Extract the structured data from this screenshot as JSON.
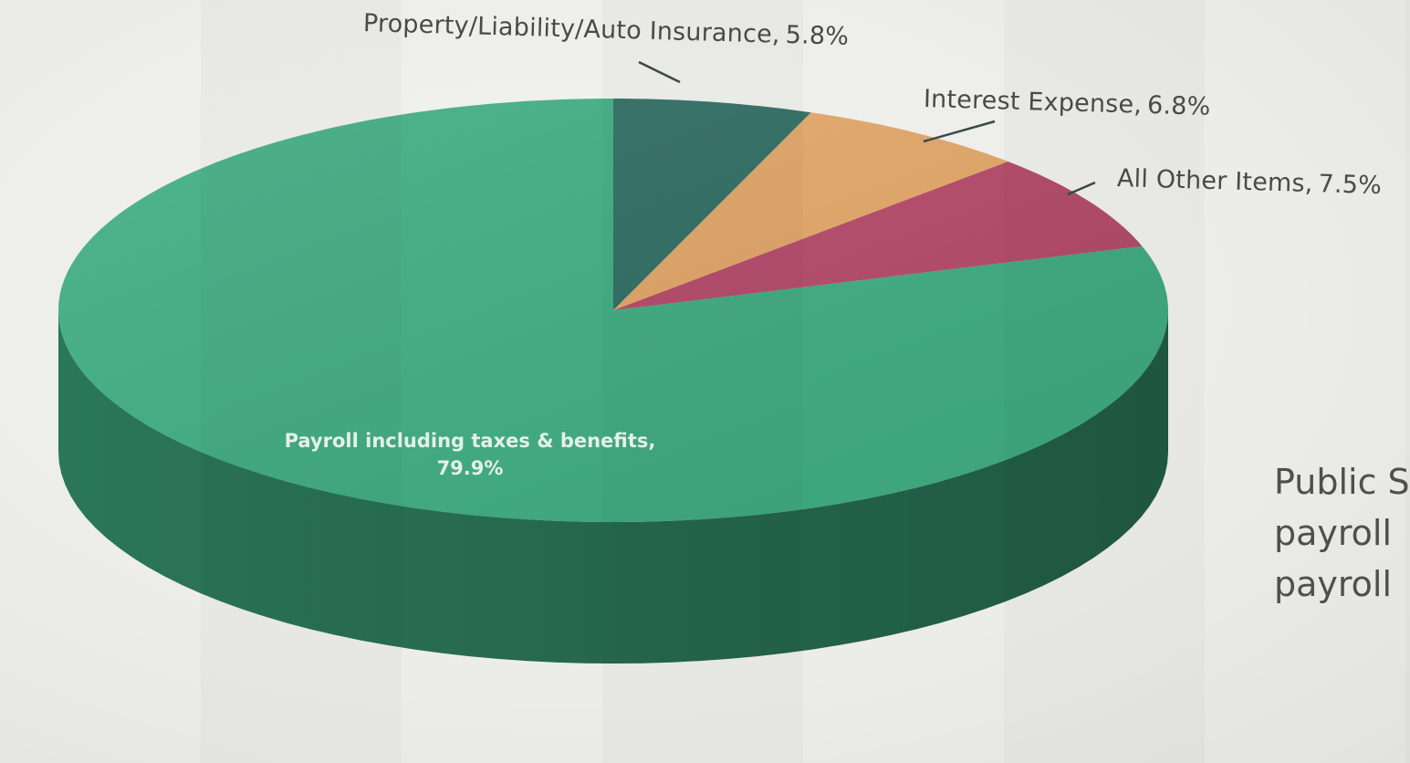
{
  "chart_data": {
    "type": "pie",
    "title": "",
    "slices": [
      {
        "label": "Payroll including taxes & benefits",
        "value": 79.9,
        "display": "79.9%",
        "color": "#3fae82"
      },
      {
        "label": "Property/Liability/Auto Insurance",
        "value": 5.8,
        "display": "5.8%",
        "color": "#2e6e63"
      },
      {
        "label": "Interest Expense",
        "value": 6.8,
        "display": "6.8%",
        "color": "#e6a869"
      },
      {
        "label": "All Other Items",
        "value": 7.5,
        "display": "7.5%",
        "color": "#b64a6b"
      }
    ],
    "start_label": "Property/Liability/Auto Insurance",
    "direction": "clockwise",
    "style": "3d",
    "legend": "none"
  },
  "callouts": {
    "insurance": {
      "name": "Property/Liability/Auto Insurance",
      "sep": ",",
      "value": "5.8%"
    },
    "interest": {
      "name": "Interest Expense",
      "sep": ",",
      "value": "6.8%"
    },
    "other": {
      "name": "All Other Items",
      "sep": ",",
      "value": "7.5%"
    },
    "payroll": {
      "name": "Payroll including taxes & benefits,",
      "value": "79.9%"
    }
  },
  "side_text": {
    "line1": "Public S",
    "line2": "payroll",
    "line3": "payroll"
  }
}
